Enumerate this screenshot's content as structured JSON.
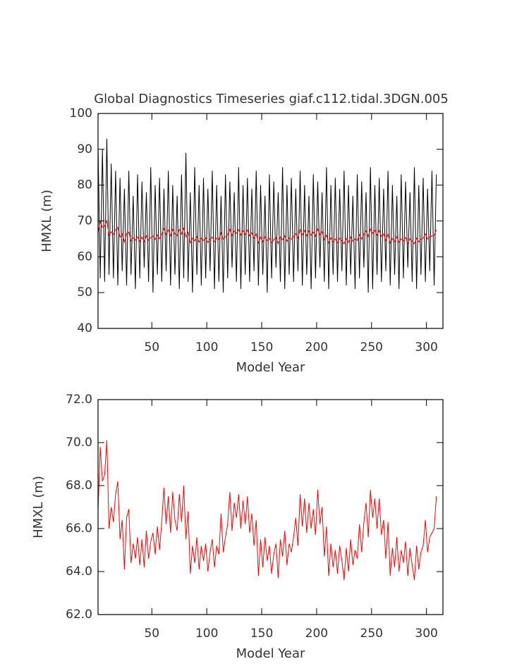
{
  "chart_data": [
    {
      "type": "line",
      "title": "Global Diagnostics Timeseries giaf.c112.tidal.3DGN.005",
      "xlabel": "Model Year",
      "ylabel": "HMXL (m)",
      "xlim": [
        1,
        315
      ],
      "xticks": [
        50,
        100,
        150,
        200,
        250,
        300
      ],
      "ylim": [
        40,
        100
      ],
      "yticks": [
        40,
        50,
        60,
        70,
        80,
        90,
        100
      ],
      "x": [
        1,
        3,
        5,
        7,
        9,
        11,
        13,
        15,
        17,
        19,
        21,
        23,
        25,
        27,
        29,
        31,
        33,
        35,
        37,
        39,
        41,
        43,
        45,
        47,
        49,
        51,
        53,
        55,
        57,
        59,
        61,
        63,
        65,
        67,
        69,
        71,
        73,
        75,
        77,
        79,
        81,
        83,
        85,
        87,
        89,
        91,
        93,
        95,
        97,
        99,
        101,
        103,
        105,
        107,
        109,
        111,
        113,
        115,
        117,
        119,
        121,
        123,
        125,
        127,
        129,
        131,
        133,
        135,
        137,
        139,
        141,
        143,
        145,
        147,
        149,
        151,
        153,
        155,
        157,
        159,
        161,
        163,
        165,
        167,
        169,
        171,
        173,
        175,
        177,
        179,
        181,
        183,
        185,
        187,
        189,
        191,
        193,
        195,
        197,
        199,
        201,
        203,
        205,
        207,
        209,
        211,
        213,
        215,
        217,
        219,
        221,
        223,
        225,
        227,
        229,
        231,
        233,
        235,
        237,
        239,
        241,
        243,
        245,
        247,
        249,
        251,
        253,
        255,
        257,
        259,
        261,
        263,
        265,
        267,
        269,
        271,
        273,
        275,
        277,
        279,
        281,
        283,
        285,
        287,
        289,
        291,
        293,
        295,
        297,
        299,
        301,
        303,
        305,
        307,
        309
      ],
      "series": [
        {
          "color": "#000000",
          "values": [
            91,
            54,
            90,
            53,
            93,
            55,
            86,
            54,
            84,
            52,
            82,
            56,
            79,
            52,
            84,
            55,
            77,
            51,
            83,
            54,
            81,
            57,
            78,
            53,
            85,
            50,
            80,
            55,
            82,
            53,
            79,
            56,
            84,
            52,
            80,
            55,
            77,
            51,
            83,
            54,
            89,
            53,
            78,
            50,
            85,
            55,
            80,
            52,
            82,
            54,
            79,
            56,
            84,
            51,
            80,
            53,
            77,
            50,
            83,
            54,
            81,
            57,
            78,
            53,
            85,
            51,
            80,
            55,
            82,
            53,
            79,
            56,
            84,
            52,
            80,
            55,
            77,
            50,
            83,
            54,
            81,
            57,
            78,
            53,
            85,
            51,
            80,
            55,
            82,
            53,
            79,
            56,
            84,
            52,
            80,
            55,
            77,
            51,
            83,
            54,
            81,
            57,
            78,
            53,
            85,
            51,
            80,
            55,
            82,
            53,
            79,
            56,
            84,
            52,
            80,
            55,
            77,
            51,
            83,
            54,
            81,
            57,
            78,
            50,
            85,
            51,
            80,
            55,
            82,
            53,
            79,
            56,
            84,
            52,
            80,
            55,
            77,
            51,
            83,
            54,
            81,
            57,
            78,
            53,
            85,
            51,
            80,
            55,
            82,
            53,
            79,
            56,
            84,
            52,
            83
          ]
        },
        {
          "color": "#ff0000",
          "values": [
            66.8,
            69.8,
            68.2,
            68.5,
            70.1,
            66.0,
            67.0,
            66.3,
            67.6,
            68.2,
            65.5,
            66.4,
            64.1,
            66.5,
            66.9,
            64.4,
            65.3,
            64.6,
            65.6,
            64.3,
            65.5,
            64.2,
            65.9,
            64.6,
            65.4,
            65.8,
            64.8,
            66.1,
            65.0,
            66.3,
            67.9,
            66.2,
            67.5,
            65.8,
            67.7,
            66.4,
            65.9,
            67.6,
            66.3,
            68.0,
            65.5,
            66.8,
            63.9,
            65.2,
            64.4,
            65.6,
            64.1,
            65.2,
            64.5,
            65.3,
            64.0,
            64.9,
            65.5,
            64.2,
            65.2,
            64.8,
            66.7,
            64.9,
            65.6,
            66.2,
            67.7,
            65.9,
            67.2,
            66.5,
            67.6,
            66.0,
            67.3,
            66.2,
            67.5,
            65.8,
            66.7,
            65.2,
            66.4,
            63.8,
            65.5,
            64.2,
            65.6,
            64.5,
            65.2,
            63.9,
            64.8,
            65.3,
            63.7,
            65.5,
            64.7,
            65.9,
            64.3,
            65.3,
            64.9,
            65.6,
            66.5,
            65.2,
            67.6,
            66.1,
            67.4,
            65.8,
            67.2,
            66.0,
            66.9,
            65.7,
            67.8,
            66.2,
            67.0,
            64.7,
            66.1,
            63.8,
            65.3,
            64.2,
            65.0,
            63.9,
            65.2,
            64.5,
            63.6,
            65.1,
            64.0,
            65.5,
            64.3,
            65.0,
            64.6,
            66.2,
            64.9,
            66.3,
            67.2,
            65.6,
            67.8,
            66.5,
            67.4,
            66.0,
            67.4,
            65.7,
            66.4,
            64.6,
            66.3,
            63.8,
            65.1,
            64.2,
            65.6,
            64.0,
            65.0,
            64.4,
            65.4,
            63.8,
            65.1,
            64.3,
            63.6,
            65.2,
            64.1,
            64.9,
            65.2,
            66.4,
            64.9,
            65.6,
            65.8,
            66.0,
            67.5
          ]
        }
      ]
    },
    {
      "type": "line",
      "xlabel": "Model Year",
      "ylabel": "HMXL (m)",
      "xlim": [
        1,
        315
      ],
      "xticks": [
        50,
        100,
        150,
        200,
        250,
        300
      ],
      "ylim": [
        62,
        72
      ],
      "yticks": [
        {
          "value": 62,
          "label": "62.0"
        },
        {
          "value": 64,
          "label": "64.0"
        },
        {
          "value": 66,
          "label": "66.0"
        },
        {
          "value": 68,
          "label": "68.0"
        },
        {
          "value": 70,
          "label": "70.0"
        },
        {
          "value": 72,
          "label": "72.0"
        }
      ],
      "x": [
        1,
        3,
        5,
        7,
        9,
        11,
        13,
        15,
        17,
        19,
        21,
        23,
        25,
        27,
        29,
        31,
        33,
        35,
        37,
        39,
        41,
        43,
        45,
        47,
        49,
        51,
        53,
        55,
        57,
        59,
        61,
        63,
        65,
        67,
        69,
        71,
        73,
        75,
        77,
        79,
        81,
        83,
        85,
        87,
        89,
        91,
        93,
        95,
        97,
        99,
        101,
        103,
        105,
        107,
        109,
        111,
        113,
        115,
        117,
        119,
        121,
        123,
        125,
        127,
        129,
        131,
        133,
        135,
        137,
        139,
        141,
        143,
        145,
        147,
        149,
        151,
        153,
        155,
        157,
        159,
        161,
        163,
        165,
        167,
        169,
        171,
        173,
        175,
        177,
        179,
        181,
        183,
        185,
        187,
        189,
        191,
        193,
        195,
        197,
        199,
        201,
        203,
        205,
        207,
        209,
        211,
        213,
        215,
        217,
        219,
        221,
        223,
        225,
        227,
        229,
        231,
        233,
        235,
        237,
        239,
        241,
        243,
        245,
        247,
        249,
        251,
        253,
        255,
        257,
        259,
        261,
        263,
        265,
        267,
        269,
        271,
        273,
        275,
        277,
        279,
        281,
        283,
        285,
        287,
        289,
        291,
        293,
        295,
        297,
        299,
        301,
        303,
        305,
        307,
        309
      ],
      "series": [
        {
          "color": "#ff0000",
          "values": [
            66.8,
            69.8,
            68.2,
            68.5,
            70.1,
            66.0,
            67.0,
            66.3,
            67.6,
            68.2,
            65.5,
            66.4,
            64.1,
            66.5,
            66.9,
            64.4,
            65.3,
            64.6,
            65.6,
            64.3,
            65.5,
            64.2,
            65.9,
            64.6,
            65.4,
            65.8,
            64.8,
            66.1,
            65.0,
            66.3,
            67.9,
            66.2,
            67.5,
            65.8,
            67.7,
            66.4,
            65.9,
            67.6,
            66.3,
            68.0,
            65.5,
            66.8,
            63.9,
            65.2,
            64.4,
            65.6,
            64.1,
            65.2,
            64.5,
            65.3,
            64.0,
            64.9,
            65.5,
            64.2,
            65.2,
            64.8,
            66.7,
            64.9,
            65.6,
            66.2,
            67.7,
            65.9,
            67.2,
            66.5,
            67.6,
            66.0,
            67.3,
            66.2,
            67.5,
            65.8,
            66.7,
            65.2,
            66.4,
            63.8,
            65.5,
            64.2,
            65.6,
            64.5,
            65.2,
            63.9,
            64.8,
            65.3,
            63.7,
            65.5,
            64.7,
            65.9,
            64.3,
            65.3,
            64.9,
            65.6,
            66.5,
            65.2,
            67.6,
            66.1,
            67.4,
            65.8,
            67.2,
            66.0,
            66.9,
            65.7,
            67.8,
            66.2,
            67.0,
            64.7,
            66.1,
            63.8,
            65.3,
            64.2,
            65.0,
            63.9,
            65.2,
            64.5,
            63.6,
            65.1,
            64.0,
            65.5,
            64.3,
            65.0,
            64.6,
            66.2,
            64.9,
            66.3,
            67.2,
            65.6,
            67.8,
            66.5,
            67.4,
            66.0,
            67.4,
            65.7,
            66.4,
            64.6,
            66.3,
            63.8,
            65.1,
            64.2,
            65.6,
            64.0,
            65.0,
            64.4,
            65.4,
            63.8,
            65.1,
            64.3,
            63.6,
            65.2,
            64.1,
            64.9,
            65.2,
            66.4,
            64.9,
            65.6,
            65.8,
            66.0,
            67.5
          ]
        }
      ]
    }
  ]
}
